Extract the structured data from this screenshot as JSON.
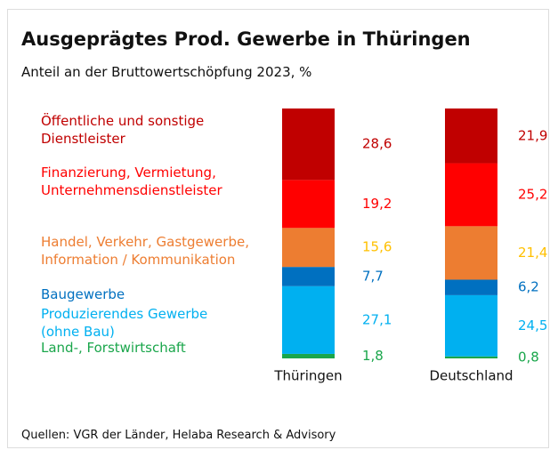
{
  "chart_data": {
    "type": "stacked_bar",
    "title": "Ausgeprägtes Prod. Gewerbe in Thüringen",
    "subtitle": "Anteil an der Bruttowertschöpfung 2023, %",
    "source": "Quellen: VGR der Länder, Helaba Research & Advisory",
    "categories": [
      "Thüringen",
      "Deutschland"
    ],
    "ylim": [
      0,
      100
    ],
    "series": [
      {
        "name": "Land-, Forstwirtschaft",
        "color": "#1aa64b",
        "label_color": "#1aa64b",
        "values": [
          1.8,
          0.8
        ],
        "value_labels": [
          "1,8",
          "0,8"
        ]
      },
      {
        "name": "Produzierendes Gewerbe (ohne Bau)",
        "color": "#00b0f0",
        "label_color": "#00b0f0",
        "values": [
          27.1,
          24.5
        ],
        "value_labels": [
          "27,1",
          "24,5"
        ]
      },
      {
        "name": "Baugewerbe",
        "color": "#0070c0",
        "label_color": "#0070c0",
        "values": [
          7.7,
          6.2
        ],
        "value_labels": [
          "7,7",
          "6,2"
        ]
      },
      {
        "name": "Handel, Verkehr, Gastgewerbe, Information / Kommunikation",
        "color": "#ed7d31",
        "label_color": "#ffc000",
        "values": [
          15.6,
          21.4
        ],
        "value_labels": [
          "15,6",
          "21,4"
        ]
      },
      {
        "name": "Finanzierung, Vermietung, Unternehmensdienstleister",
        "color": "#ff0000",
        "label_color": "#ff0000",
        "values": [
          19.2,
          25.2
        ],
        "value_labels": [
          "19,2",
          "25,2"
        ]
      },
      {
        "name": "Öffentliche und sonstige Dienstleister",
        "color": "#c00000",
        "label_color": "#c00000",
        "values": [
          28.6,
          21.9
        ],
        "value_labels": [
          "28,6",
          "21,9"
        ]
      }
    ]
  }
}
